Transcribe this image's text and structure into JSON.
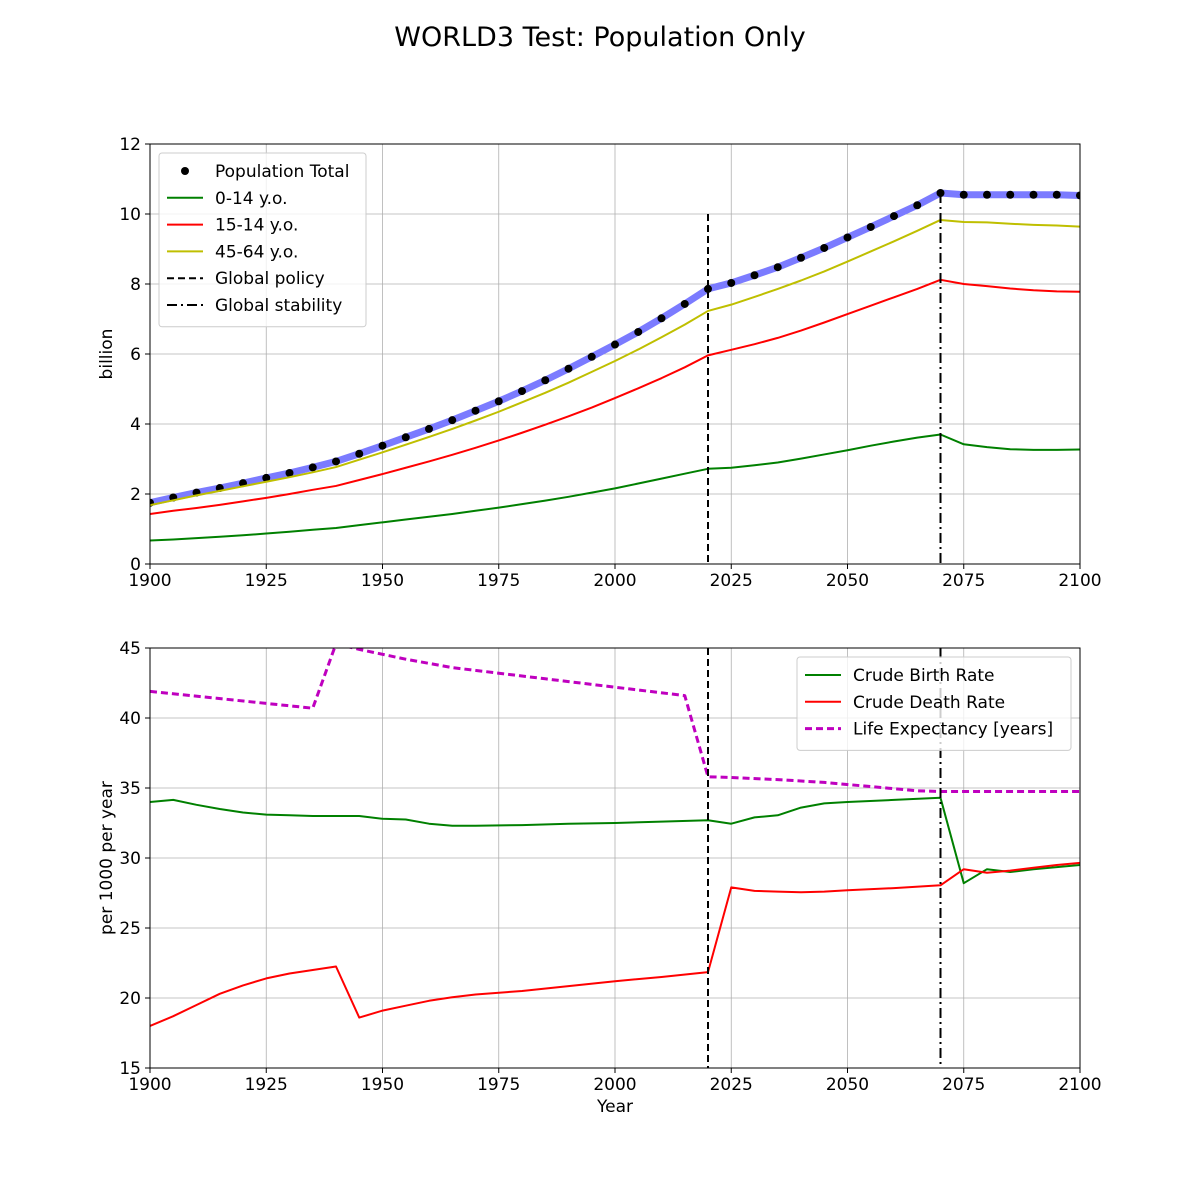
{
  "figure": {
    "title": "WORLD3 Test: Population Only"
  },
  "chart_data": [
    {
      "type": "line",
      "title": "",
      "xlabel": "",
      "ylabel": "billion",
      "xlim": [
        1900,
        2100
      ],
      "ylim": [
        0,
        12
      ],
      "xticks": [
        "1900",
        "1925",
        "1950",
        "1975",
        "2000",
        "2025",
        "2050",
        "2075",
        "2100"
      ],
      "yticks": [
        "0",
        "2",
        "4",
        "6",
        "8",
        "10",
        "12"
      ],
      "grid": true,
      "legend_position": "upper-left",
      "series": [
        {
          "name": "Population Total",
          "style": "dots-on-thick-line",
          "color": "#000000",
          "band_color": "#7b7bff",
          "x": [
            1900,
            1905,
            1910,
            1915,
            1920,
            1925,
            1930,
            1935,
            1940,
            1945,
            1950,
            1955,
            1960,
            1965,
            1970,
            1975,
            1980,
            1985,
            1990,
            1995,
            2000,
            2005,
            2010,
            2015,
            2020,
            2025,
            2030,
            2035,
            2040,
            2045,
            2050,
            2055,
            2060,
            2065,
            2070,
            2075,
            2080,
            2085,
            2090,
            2095,
            2100
          ],
          "values": [
            1.75,
            1.9,
            2.04,
            2.17,
            2.31,
            2.46,
            2.6,
            2.76,
            2.93,
            3.15,
            3.38,
            3.62,
            3.86,
            4.11,
            4.38,
            4.65,
            4.94,
            5.25,
            5.58,
            5.92,
            6.27,
            6.63,
            7.02,
            7.43,
            7.86,
            8.03,
            8.25,
            8.48,
            8.75,
            9.03,
            9.33,
            9.63,
            9.94,
            10.25,
            10.6,
            10.55,
            10.55,
            10.55,
            10.55,
            10.55,
            10.53
          ]
        },
        {
          "name": "0-14 y.o.",
          "style": "solid",
          "color": "#008000",
          "x": [
            1900,
            1905,
            1910,
            1915,
            1920,
            1925,
            1930,
            1935,
            1940,
            1945,
            1950,
            1955,
            1960,
            1965,
            1970,
            1975,
            1980,
            1985,
            1990,
            1995,
            2000,
            2005,
            2010,
            2015,
            2020,
            2025,
            2030,
            2035,
            2040,
            2045,
            2050,
            2055,
            2060,
            2065,
            2070,
            2075,
            2080,
            2085,
            2090,
            2095,
            2100
          ],
          "values": [
            0.67,
            0.7,
            0.74,
            0.78,
            0.82,
            0.87,
            0.92,
            0.98,
            1.03,
            1.11,
            1.19,
            1.27,
            1.35,
            1.43,
            1.52,
            1.61,
            1.71,
            1.81,
            1.92,
            2.04,
            2.16,
            2.3,
            2.44,
            2.58,
            2.72,
            2.75,
            2.82,
            2.9,
            3.01,
            3.13,
            3.25,
            3.38,
            3.5,
            3.61,
            3.7,
            3.42,
            3.34,
            3.28,
            3.26,
            3.26,
            3.27
          ]
        },
        {
          "name": "15-14 y.o.",
          "style": "solid",
          "color": "#ff0000",
          "x": [
            1900,
            1905,
            1910,
            1915,
            1920,
            1925,
            1930,
            1935,
            1940,
            1945,
            1950,
            1955,
            1960,
            1965,
            1970,
            1975,
            1980,
            1985,
            1990,
            1995,
            2000,
            2005,
            2010,
            2015,
            2020,
            2025,
            2030,
            2035,
            2040,
            2045,
            2050,
            2055,
            2060,
            2065,
            2070,
            2075,
            2080,
            2085,
            2090,
            2095,
            2100
          ],
          "values": [
            1.43,
            1.52,
            1.6,
            1.69,
            1.79,
            1.89,
            2.0,
            2.12,
            2.23,
            2.4,
            2.57,
            2.75,
            2.93,
            3.12,
            3.32,
            3.53,
            3.75,
            3.98,
            4.22,
            4.47,
            4.74,
            5.02,
            5.31,
            5.62,
            5.96,
            6.12,
            6.28,
            6.46,
            6.67,
            6.9,
            7.14,
            7.38,
            7.62,
            7.86,
            8.12,
            8.0,
            7.94,
            7.87,
            7.82,
            7.79,
            7.78
          ]
        },
        {
          "name": "45-64 y.o.",
          "style": "solid",
          "color": "#bfbf00",
          "x": [
            1900,
            1905,
            1910,
            1915,
            1920,
            1925,
            1930,
            1935,
            1940,
            1945,
            1950,
            1955,
            1960,
            1965,
            1970,
            1975,
            1980,
            1985,
            1990,
            1995,
            2000,
            2005,
            2010,
            2015,
            2020,
            2025,
            2030,
            2035,
            2040,
            2045,
            2050,
            2055,
            2060,
            2065,
            2070,
            2075,
            2080,
            2085,
            2090,
            2095,
            2100
          ],
          "values": [
            1.68,
            1.82,
            1.96,
            2.09,
            2.22,
            2.35,
            2.48,
            2.62,
            2.77,
            2.98,
            3.19,
            3.41,
            3.63,
            3.86,
            4.1,
            4.35,
            4.62,
            4.89,
            5.18,
            5.49,
            5.8,
            6.13,
            6.48,
            6.84,
            7.23,
            7.41,
            7.63,
            7.86,
            8.1,
            8.36,
            8.64,
            8.93,
            9.22,
            9.52,
            9.83,
            9.77,
            9.76,
            9.72,
            9.69,
            9.67,
            9.64
          ]
        }
      ],
      "vlines": [
        {
          "name": "Global policy",
          "x": 2020,
          "style": "dashed",
          "color": "#000000",
          "ymax": 10
        },
        {
          "name": "Global stability",
          "x": 2070,
          "style": "dashdot",
          "color": "#000000",
          "ymax": 10.6
        }
      ]
    },
    {
      "type": "line",
      "title": "",
      "xlabel": "Year",
      "ylabel": "per 1000 per year",
      "xlim": [
        1900,
        2100
      ],
      "ylim": [
        15,
        45
      ],
      "xticks": [
        "1900",
        "1925",
        "1950",
        "1975",
        "2000",
        "2025",
        "2050",
        "2075",
        "2100"
      ],
      "yticks": [
        "15",
        "20",
        "25",
        "30",
        "35",
        "40",
        "45"
      ],
      "grid": true,
      "legend_position": "upper-right",
      "series": [
        {
          "name": "Crude Birth Rate",
          "style": "solid",
          "color": "#008000",
          "x": [
            1900,
            1905,
            1910,
            1915,
            1920,
            1925,
            1930,
            1935,
            1940,
            1945,
            1950,
            1955,
            1960,
            1965,
            1970,
            1980,
            1990,
            2000,
            2010,
            2020,
            2025,
            2030,
            2035,
            2040,
            2045,
            2050,
            2060,
            2070,
            2075,
            2080,
            2085,
            2090,
            2095,
            2100
          ],
          "values": [
            34.0,
            34.15,
            33.8,
            33.5,
            33.25,
            33.1,
            33.05,
            33.0,
            33.0,
            33.0,
            32.8,
            32.75,
            32.45,
            32.3,
            32.3,
            32.35,
            32.45,
            32.5,
            32.6,
            32.7,
            32.45,
            32.9,
            33.05,
            33.6,
            33.9,
            34.0,
            34.15,
            34.3,
            28.2,
            29.2,
            29.0,
            29.2,
            29.35,
            29.5
          ]
        },
        {
          "name": "Crude Death Rate",
          "style": "solid",
          "color": "#ff0000",
          "x": [
            1900,
            1905,
            1910,
            1915,
            1920,
            1925,
            1930,
            1935,
            1940,
            1945,
            1950,
            1955,
            1960,
            1965,
            1970,
            1980,
            1990,
            2000,
            2010,
            2020,
            2025,
            2030,
            2035,
            2040,
            2045,
            2050,
            2060,
            2070,
            2075,
            2080,
            2085,
            2090,
            2095,
            2100
          ],
          "values": [
            18.0,
            18.7,
            19.5,
            20.3,
            20.9,
            21.4,
            21.75,
            22.0,
            22.25,
            18.6,
            19.1,
            19.45,
            19.8,
            20.05,
            20.25,
            20.5,
            20.85,
            21.2,
            21.5,
            21.85,
            27.9,
            27.65,
            27.6,
            27.55,
            27.6,
            27.7,
            27.85,
            28.05,
            29.2,
            28.95,
            29.1,
            29.3,
            29.5,
            29.65
          ]
        },
        {
          "name": "Life Expectancy [years]",
          "style": "dashed",
          "color": "#bf00bf",
          "x": [
            1900,
            1935,
            1940,
            1945,
            1955,
            1965,
            1975,
            1985,
            1995,
            2005,
            2015,
            2020,
            2025,
            2035,
            2045,
            2055,
            2065,
            2070,
            2080,
            2090,
            2100
          ],
          "values": [
            41.9,
            40.7,
            45.3,
            44.9,
            44.2,
            43.6,
            43.2,
            42.8,
            42.4,
            42.0,
            41.6,
            35.8,
            35.75,
            35.6,
            35.4,
            35.1,
            34.8,
            34.75,
            34.75,
            34.75,
            34.75
          ]
        }
      ],
      "vlines": [
        {
          "name": "Global policy",
          "x": 2020,
          "style": "dashed",
          "color": "#000000",
          "ymax": 45
        },
        {
          "name": "Global stability",
          "x": 2070,
          "style": "dashdot",
          "color": "#000000",
          "ymax": 45
        }
      ]
    }
  ]
}
